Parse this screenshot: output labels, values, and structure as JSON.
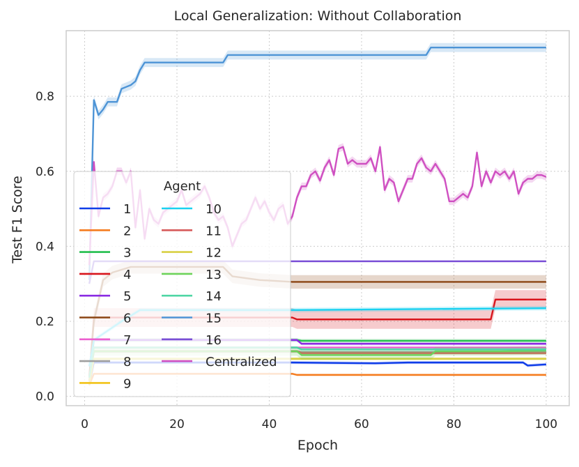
{
  "chart_data": {
    "type": "line",
    "title": "Local Generalization: Without Collaboration",
    "xlabel": "Epoch",
    "ylabel": "Test F1 Score",
    "xlim": [
      -4,
      105
    ],
    "ylim": [
      -0.025,
      0.975
    ],
    "xticks": [
      0,
      20,
      40,
      60,
      80,
      100
    ],
    "xtick_labels": [
      "0",
      "20",
      "40",
      "60",
      "80",
      "100"
    ],
    "yticks": [
      0.0,
      0.2,
      0.4,
      0.6,
      0.8
    ],
    "ytick_labels": [
      "0.0",
      "0.2",
      "0.4",
      "0.6",
      "0.8"
    ],
    "grid": true,
    "legend": {
      "title": "Agent",
      "placement": "center-left",
      "columns": 2
    },
    "series": [
      {
        "name": "1",
        "color": "#0f3de8",
        "x": [
          1,
          2,
          10,
          30,
          45,
          63,
          70,
          95,
          96,
          100
        ],
        "y": [
          0.03,
          0.09,
          0.09,
          0.09,
          0.09,
          0.088,
          0.09,
          0.09,
          0.082,
          0.085
        ],
        "band": 0.004
      },
      {
        "name": "2",
        "color": "#f57c1f",
        "x": [
          1,
          2,
          45,
          46,
          100
        ],
        "y": [
          0.03,
          0.06,
          0.06,
          0.057,
          0.057
        ],
        "band": 0.003
      },
      {
        "name": "3",
        "color": "#22bf4d",
        "x": [
          1,
          2,
          46,
          47,
          100
        ],
        "y": [
          0.04,
          0.15,
          0.15,
          0.148,
          0.148
        ],
        "band": 0.005
      },
      {
        "name": "4",
        "color": "#d8141b",
        "x": [
          1,
          2,
          45,
          46,
          88,
          89,
          100
        ],
        "y": [
          0.05,
          0.21,
          0.21,
          0.205,
          0.205,
          0.258,
          0.258
        ],
        "band": 0.025
      },
      {
        "name": "5",
        "color": "#8a2be2",
        "x": [
          1,
          2,
          46,
          47,
          100
        ],
        "y": [
          0.08,
          0.15,
          0.15,
          0.14,
          0.14
        ],
        "band": 0.004
      },
      {
        "name": "6",
        "color": "#8b4513",
        "x": [
          1,
          2,
          4,
          6,
          10,
          30,
          32,
          38,
          45,
          100
        ],
        "y": [
          0.05,
          0.2,
          0.31,
          0.33,
          0.345,
          0.345,
          0.32,
          0.31,
          0.305,
          0.305
        ],
        "band": 0.018
      },
      {
        "name": "7",
        "color": "#ec5fcf",
        "x": [
          1,
          2,
          6,
          10,
          20,
          30,
          45,
          100
        ],
        "y": [
          0.08,
          0.13,
          0.13,
          0.13,
          0.13,
          0.13,
          0.13,
          0.13
        ],
        "band": 0.003
      },
      {
        "name": "8",
        "color": "#9e9e9e",
        "x": [
          1,
          2,
          46,
          47,
          100
        ],
        "y": [
          0.05,
          0.12,
          0.12,
          0.118,
          0.118
        ],
        "band": 0.004
      },
      {
        "name": "9",
        "color": "#f2c318",
        "x": [
          1,
          2,
          46,
          47,
          100
        ],
        "y": [
          0.03,
          0.1,
          0.1,
          0.1,
          0.1
        ],
        "band": 0.003
      },
      {
        "name": "10",
        "color": "#1ad1f0",
        "x": [
          1,
          2,
          8,
          12,
          46,
          100
        ],
        "y": [
          0.08,
          0.15,
          0.2,
          0.23,
          0.23,
          0.235
        ],
        "band": 0.006
      },
      {
        "name": "11",
        "color": "#d65a5a",
        "x": [
          1,
          2,
          46,
          47,
          100
        ],
        "y": [
          0.04,
          0.12,
          0.12,
          0.115,
          0.115
        ],
        "band": 0.004
      },
      {
        "name": "12",
        "color": "#d9d044",
        "x": [
          1,
          2,
          46,
          47,
          100
        ],
        "y": [
          0.04,
          0.1,
          0.1,
          0.1,
          0.1
        ],
        "band": 0.004
      },
      {
        "name": "13",
        "color": "#6dd35a",
        "x": [
          1,
          2,
          46,
          47,
          75,
          76,
          90,
          100
        ],
        "y": [
          0.05,
          0.12,
          0.12,
          0.11,
          0.11,
          0.12,
          0.12,
          0.122
        ],
        "band": 0.012
      },
      {
        "name": "14",
        "color": "#4fd6a4",
        "x": [
          1,
          2,
          46,
          47,
          100
        ],
        "y": [
          0.05,
          0.13,
          0.13,
          0.125,
          0.125
        ],
        "band": 0.004
      },
      {
        "name": "15",
        "color": "#4d94d6",
        "x": [
          1,
          2,
          3,
          4,
          5,
          6,
          7,
          8,
          9,
          10,
          11,
          12,
          13,
          20,
          25,
          30,
          31,
          45,
          74,
          75,
          100
        ],
        "y": [
          0.31,
          0.79,
          0.75,
          0.765,
          0.785,
          0.785,
          0.785,
          0.82,
          0.825,
          0.83,
          0.84,
          0.87,
          0.89,
          0.89,
          0.89,
          0.89,
          0.91,
          0.91,
          0.91,
          0.93,
          0.93
        ],
        "band": 0.012
      },
      {
        "name": "16",
        "color": "#7a4fd6",
        "x": [
          1,
          2,
          3,
          10,
          45,
          100
        ],
        "y": [
          0.3,
          0.36,
          0.36,
          0.36,
          0.36,
          0.36
        ],
        "band": 0.002
      },
      {
        "name": "Centralized",
        "color": "#cf4fc1",
        "x": [
          1,
          2,
          3,
          4,
          5,
          6,
          7,
          8,
          9,
          10,
          11,
          12,
          13,
          14,
          15,
          16,
          17,
          18,
          19,
          20,
          21,
          22,
          23,
          24,
          25,
          26,
          27,
          28,
          29,
          30,
          31,
          32,
          33,
          34,
          35,
          36,
          37,
          38,
          39,
          40,
          41,
          42,
          43,
          44,
          45,
          46,
          47,
          48,
          49,
          50,
          51,
          52,
          53,
          54,
          55,
          56,
          57,
          58,
          59,
          60,
          61,
          62,
          63,
          64,
          65,
          66,
          67,
          68,
          69,
          70,
          71,
          72,
          73,
          74,
          75,
          76,
          77,
          78,
          79,
          80,
          81,
          82,
          83,
          84,
          85,
          86,
          87,
          88,
          89,
          90,
          91,
          92,
          93,
          94,
          95,
          96,
          97,
          98,
          99,
          100
        ],
        "y": [
          0.35,
          0.625,
          0.48,
          0.53,
          0.54,
          0.56,
          0.6,
          0.6,
          0.57,
          0.6,
          0.45,
          0.55,
          0.42,
          0.5,
          0.47,
          0.46,
          0.49,
          0.5,
          0.51,
          0.52,
          0.55,
          0.51,
          0.52,
          0.53,
          0.54,
          0.56,
          0.53,
          0.49,
          0.47,
          0.48,
          0.45,
          0.4,
          0.43,
          0.46,
          0.47,
          0.5,
          0.53,
          0.5,
          0.52,
          0.49,
          0.47,
          0.5,
          0.51,
          0.46,
          0.48,
          0.53,
          0.56,
          0.56,
          0.59,
          0.6,
          0.575,
          0.61,
          0.63,
          0.59,
          0.66,
          0.665,
          0.62,
          0.63,
          0.62,
          0.62,
          0.62,
          0.635,
          0.6,
          0.665,
          0.55,
          0.58,
          0.57,
          0.52,
          0.55,
          0.58,
          0.58,
          0.62,
          0.635,
          0.61,
          0.6,
          0.62,
          0.6,
          0.58,
          0.52,
          0.52,
          0.53,
          0.54,
          0.53,
          0.56,
          0.65,
          0.56,
          0.6,
          0.57,
          0.6,
          0.59,
          0.6,
          0.58,
          0.6,
          0.54,
          0.57,
          0.58,
          0.58,
          0.59,
          0.59,
          0.585
        ],
        "band": 0.01
      }
    ]
  }
}
